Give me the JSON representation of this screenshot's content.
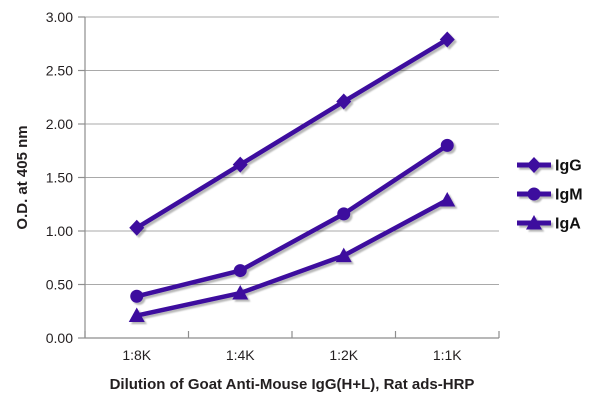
{
  "chart_data": {
    "type": "line",
    "title": "",
    "xlabel": "Dilution of Goat Anti-Mouse IgG(H+L), Rat ads-HRP",
    "ylabel": "O.D. at 405 nm",
    "categories": [
      "1:8K",
      "1:4K",
      "1:2K",
      "1:1K"
    ],
    "series": [
      {
        "name": "IgG",
        "marker": "diamond",
        "values": [
          1.03,
          1.62,
          2.21,
          2.79
        ]
      },
      {
        "name": "IgM",
        "marker": "circle",
        "values": [
          0.39,
          0.63,
          1.16,
          1.8
        ]
      },
      {
        "name": "IgA",
        "marker": "triangle",
        "values": [
          0.21,
          0.42,
          0.77,
          1.29
        ]
      }
    ],
    "ylim": [
      0,
      3
    ],
    "y_ticks": [
      "0.00",
      "0.50",
      "1.00",
      "1.50",
      "2.00",
      "2.50",
      "3.00"
    ],
    "grid": true,
    "legend_position": "right",
    "colors": {
      "series": "#3c0d9e",
      "gridline": "#a9a9a9",
      "axis": "#8e8e8e",
      "text": "#231f20"
    }
  }
}
